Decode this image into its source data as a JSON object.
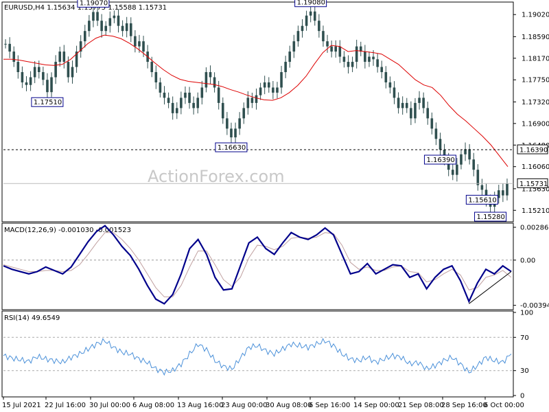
{
  "colors": {
    "candle": "#2f4f4f",
    "ma": "#dd0000",
    "macd": "#00008b",
    "signal": "#c0a0a0",
    "rsi": "#4a90d9",
    "trend": "#000000"
  },
  "watermark": "ActionForex.com",
  "chart_data": [
    {
      "type": "candlestick",
      "title": "EURUSD,H4  1.15634 1.15775 1.15588 1.15731",
      "ylim": [
        1.15,
        1.1925
      ],
      "yticks": [
        "1.19020",
        "1.18590",
        "1.18170",
        "1.17750",
        "1.17320",
        "1.16900",
        "1.16480",
        "1.16060",
        "1.15630",
        "1.15210"
      ],
      "ytick_values": [
        1.1902,
        1.1859,
        1.1817,
        1.1775,
        1.1732,
        1.169,
        1.1648,
        1.1606,
        1.1563,
        1.1521
      ],
      "current_price": "1.15731",
      "current_value": 1.15731,
      "level_line": "1.16390",
      "level_value": 1.1639,
      "annotations": [
        {
          "text": "1.19070",
          "value": 1.1907
        },
        {
          "text": "1.17510",
          "value": 1.1751
        },
        {
          "text": "1.19080",
          "value": 1.1908
        },
        {
          "text": "1.16630",
          "value": 1.1663
        },
        {
          "text": "1.16390",
          "value": 1.1639
        },
        {
          "text": "1.15610",
          "value": 1.1561
        },
        {
          "text": "1.15280",
          "value": 1.1528
        }
      ],
      "price_path": [
        1.1845,
        1.183,
        1.181,
        1.179,
        1.177,
        1.1765,
        1.178,
        1.18,
        1.179,
        1.1775,
        1.1751,
        1.178,
        1.181,
        1.183,
        1.181,
        1.178,
        1.18,
        1.183,
        1.185,
        1.187,
        1.189,
        1.1907,
        1.189,
        1.187,
        1.188,
        1.1895,
        1.19,
        1.188,
        1.187,
        1.1885,
        1.186,
        1.184,
        1.185,
        1.183,
        1.181,
        1.179,
        1.177,
        1.175,
        1.174,
        1.173,
        1.171,
        1.172,
        1.174,
        1.175,
        1.173,
        1.172,
        1.174,
        1.176,
        1.179,
        1.178,
        1.176,
        1.173,
        1.17,
        1.168,
        1.1663,
        1.168,
        1.17,
        1.172,
        1.174,
        1.173,
        1.1745,
        1.176,
        1.177,
        1.176,
        1.175,
        1.176,
        1.179,
        1.181,
        1.183,
        1.185,
        1.187,
        1.188,
        1.19,
        1.1908,
        1.189,
        1.187,
        1.185,
        1.184,
        1.183,
        1.184,
        1.182,
        1.181,
        1.18,
        1.181,
        1.184,
        1.183,
        1.181,
        1.182,
        1.1815,
        1.18,
        1.179,
        1.177,
        1.176,
        1.174,
        1.172,
        1.173,
        1.172,
        1.17,
        1.173,
        1.174,
        1.172,
        1.17,
        1.168,
        1.166,
        1.1639,
        1.162,
        1.16,
        1.159,
        1.161,
        1.163,
        1.164,
        1.162,
        1.16,
        1.157,
        1.1561,
        1.154,
        1.1528,
        1.1545,
        1.156,
        1.155,
        1.1573
      ],
      "ma_path": [
        1.1815,
        1.1815,
        1.1813,
        1.181,
        1.1807,
        1.1804,
        1.1803,
        1.1805,
        1.1815,
        1.183,
        1.1845,
        1.1856,
        1.1862,
        1.186,
        1.1855,
        1.1846,
        1.1835,
        1.1822,
        1.1808,
        1.1795,
        1.1784,
        1.1776,
        1.1772,
        1.177,
        1.1768,
        1.1766,
        1.1762,
        1.1756,
        1.1751,
        1.1745,
        1.174,
        1.1736,
        1.1735,
        1.174,
        1.175,
        1.1764,
        1.1782,
        1.1806,
        1.1828,
        1.1842,
        1.184,
        1.183,
        1.1832,
        1.183,
        1.1828,
        1.1825,
        1.1815,
        1.1805,
        1.179,
        1.1775,
        1.1765,
        1.176,
        1.1745,
        1.1725,
        1.1708,
        1.1695,
        1.168,
        1.1665,
        1.1648,
        1.1627,
        1.1606
      ]
    },
    {
      "type": "line",
      "title": "MACD(12,26,9) -0.001030 -0.001523",
      "ylim": [
        -0.0042,
        0.0031
      ],
      "yticks": [
        "0.002861",
        "0.00",
        "-0.00394"
      ],
      "ytick_values": [
        0.002861,
        0.0,
        -0.00394
      ],
      "macd_values": [
        -0.0005,
        -0.0008,
        -0.001,
        -0.0012,
        -0.001,
        -0.0006,
        -0.0009,
        -0.0012,
        -0.0006,
        0.0005,
        0.0016,
        0.0025,
        0.003,
        0.0022,
        0.0012,
        0.0004,
        -0.0008,
        -0.0022,
        -0.0034,
        -0.0038,
        -0.003,
        -0.0012,
        0.001,
        0.0018,
        0.0005,
        -0.0015,
        -0.0026,
        -0.0025,
        -0.0005,
        0.0015,
        0.002,
        0.001,
        0.0005,
        0.0015,
        0.0024,
        0.002,
        0.0018,
        0.0022,
        0.0028,
        0.0022,
        0.0005,
        -0.0012,
        -0.001,
        -0.0003,
        -0.0012,
        -0.0008,
        -0.0004,
        -0.0005,
        -0.0015,
        -0.0012,
        -0.0025,
        -0.0015,
        -0.0008,
        -0.0005,
        -0.0018,
        -0.0036,
        -0.002,
        -0.0008,
        -0.0012,
        -0.0005,
        -0.001
      ],
      "signal_values": [
        -0.0004,
        -0.0006,
        -0.0008,
        -0.001,
        -0.001,
        -0.0009,
        -0.0009,
        -0.001,
        -0.0009,
        -0.0004,
        0.0005,
        0.0015,
        0.0024,
        0.0024,
        0.0018,
        0.001,
        0.0,
        -0.0012,
        -0.0024,
        -0.0032,
        -0.0032,
        -0.0022,
        -0.0006,
        0.0008,
        0.0008,
        -0.0004,
        -0.0017,
        -0.0023,
        -0.0015,
        0.0002,
        0.0013,
        0.0012,
        0.0009,
        0.0012,
        0.0019,
        0.002,
        0.0019,
        0.002,
        0.0024,
        0.0023,
        0.0013,
        -0.0002,
        -0.0008,
        -0.0006,
        -0.0009,
        -0.0009,
        -0.0006,
        -0.0005,
        -0.001,
        -0.0011,
        -0.0019,
        -0.0017,
        -0.0012,
        -0.0008,
        -0.0013,
        -0.0026,
        -0.0024,
        -0.0015,
        -0.0013,
        -0.0009,
        -0.0015
      ],
      "trendline": [
        [
          55,
          -0.0038
        ],
        [
          60,
          -0.001
        ]
      ]
    },
    {
      "type": "line",
      "title": "RSI(14) 49.6549",
      "ylim": [
        0,
        100
      ],
      "yticks": [
        "100",
        "70",
        "30",
        "0"
      ],
      "ytick_values": [
        100,
        70,
        30,
        0
      ],
      "levels": [
        70,
        30
      ],
      "values": [
        48,
        45,
        43,
        41,
        47,
        44,
        42,
        40,
        46,
        50,
        56,
        62,
        66,
        58,
        52,
        50,
        44,
        40,
        32,
        28,
        30,
        38,
        50,
        62,
        55,
        42,
        35,
        32,
        45,
        58,
        60,
        54,
        50,
        56,
        62,
        60,
        58,
        62,
        66,
        60,
        50,
        44,
        42,
        46,
        40,
        44,
        48,
        46,
        38,
        40,
        32,
        36,
        42,
        46,
        38,
        28,
        36,
        46,
        42,
        40,
        50
      ],
      "x_labels": [
        "15 Jul 2021",
        "22 Jul 16:00",
        "30 Jul 00:00",
        "6 Aug 08:00",
        "13 Aug 16:00",
        "23 Aug 00:00",
        "30 Aug 08:00",
        "6 Sep 16:00",
        "14 Sep 00:00",
        "21 Sep 08:00",
        "28 Sep 16:00",
        "6 Oct 00:00"
      ]
    }
  ]
}
